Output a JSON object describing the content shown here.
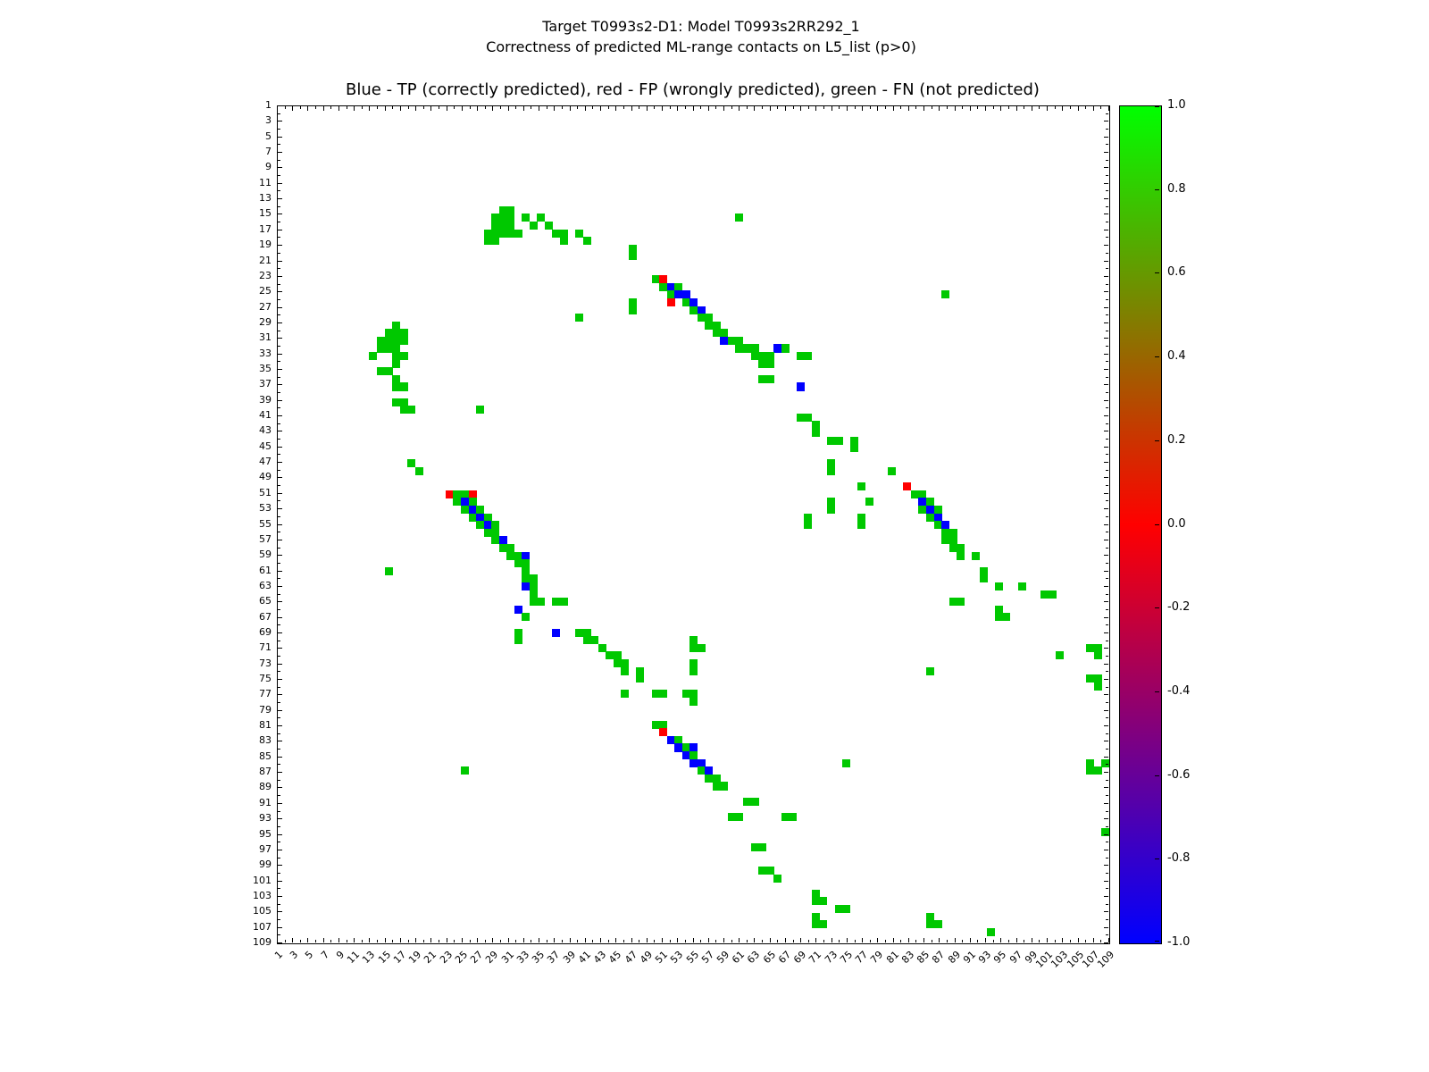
{
  "figure": {
    "title_line1": "Target T0993s2-D1: Model T0993s2RR292_1",
    "title_line2": "Correctness of predicted ML-range contacts on L5_list (p>0)"
  },
  "chart_data": {
    "type": "heatmap",
    "title": "Blue - TP (correctly predicted), red - FP (wrongly predicted), green - FN (not predicted)",
    "grid": {
      "rows": 109,
      "cols": 109
    },
    "axis_range": [
      1,
      109
    ],
    "tick_labels": [
      1,
      3,
      5,
      7,
      9,
      11,
      13,
      15,
      17,
      19,
      21,
      23,
      25,
      27,
      29,
      31,
      33,
      35,
      37,
      39,
      41,
      43,
      45,
      47,
      49,
      51,
      53,
      55,
      57,
      59,
      61,
      63,
      65,
      67,
      69,
      71,
      73,
      75,
      77,
      79,
      81,
      83,
      85,
      87,
      89,
      91,
      93,
      95,
      97,
      99,
      101,
      103,
      105,
      107,
      109
    ],
    "classes": {
      "TP": {
        "color": "#0000ff",
        "meaning": "correctly predicted"
      },
      "FP": {
        "color": "#ff0000",
        "meaning": "wrongly predicted"
      },
      "FN": {
        "color": "#00c800",
        "meaning": "not predicted"
      }
    },
    "colorbar": {
      "min": -1.0,
      "max": 1.0,
      "tick_labels": [
        "1.0",
        "0.8",
        "0.6",
        "0.4",
        "0.2",
        "0.0",
        "-0.2",
        "-0.4",
        "-0.6",
        "-0.8",
        "-1.0"
      ],
      "gradient_stops": [
        {
          "value": 1.0,
          "color": "#00ff00"
        },
        {
          "value": 0.0,
          "color": "#ff0000"
        },
        {
          "value": -1.0,
          "color": "#0000ff"
        }
      ]
    },
    "cells": [
      [
        14,
        30,
        "FN"
      ],
      [
        14,
        31,
        "FN"
      ],
      [
        15,
        29,
        "FN"
      ],
      [
        15,
        30,
        "FN"
      ],
      [
        15,
        31,
        "FN"
      ],
      [
        15,
        33,
        "FN"
      ],
      [
        15,
        35,
        "FN"
      ],
      [
        15,
        61,
        "FN"
      ],
      [
        16,
        29,
        "FN"
      ],
      [
        16,
        30,
        "FN"
      ],
      [
        16,
        31,
        "FN"
      ],
      [
        16,
        34,
        "FN"
      ],
      [
        16,
        36,
        "FN"
      ],
      [
        17,
        28,
        "FN"
      ],
      [
        17,
        29,
        "FN"
      ],
      [
        17,
        30,
        "FN"
      ],
      [
        17,
        31,
        "FN"
      ],
      [
        17,
        32,
        "FN"
      ],
      [
        17,
        37,
        "FN"
      ],
      [
        17,
        38,
        "FN"
      ],
      [
        17,
        40,
        "FN"
      ],
      [
        18,
        28,
        "FN"
      ],
      [
        18,
        29,
        "FN"
      ],
      [
        18,
        38,
        "FN"
      ],
      [
        18,
        41,
        "FN"
      ],
      [
        19,
        47,
        "FN"
      ],
      [
        20,
        47,
        "FN"
      ],
      [
        23,
        50,
        "FN"
      ],
      [
        23,
        51,
        "FP"
      ],
      [
        24,
        51,
        "FN"
      ],
      [
        24,
        52,
        "TP"
      ],
      [
        24,
        53,
        "FN"
      ],
      [
        25,
        52,
        "FN"
      ],
      [
        25,
        53,
        "TP"
      ],
      [
        25,
        54,
        "TP"
      ],
      [
        25,
        88,
        "FN"
      ],
      [
        26,
        47,
        "FN"
      ],
      [
        26,
        52,
        "FP"
      ],
      [
        26,
        54,
        "FN"
      ],
      [
        26,
        55,
        "TP"
      ],
      [
        27,
        47,
        "FN"
      ],
      [
        27,
        55,
        "FN"
      ],
      [
        27,
        56,
        "TP"
      ],
      [
        28,
        40,
        "FN"
      ],
      [
        28,
        56,
        "FN"
      ],
      [
        28,
        57,
        "FN"
      ],
      [
        29,
        16,
        "FN"
      ],
      [
        29,
        57,
        "FN"
      ],
      [
        29,
        58,
        "FN"
      ],
      [
        30,
        15,
        "FN"
      ],
      [
        30,
        16,
        "FN"
      ],
      [
        30,
        17,
        "FN"
      ],
      [
        30,
        58,
        "FN"
      ],
      [
        30,
        59,
        "FN"
      ],
      [
        31,
        14,
        "FN"
      ],
      [
        31,
        15,
        "FN"
      ],
      [
        31,
        16,
        "FN"
      ],
      [
        31,
        17,
        "FN"
      ],
      [
        31,
        59,
        "TP"
      ],
      [
        31,
        60,
        "FN"
      ],
      [
        31,
        61,
        "FN"
      ],
      [
        32,
        14,
        "FN"
      ],
      [
        32,
        15,
        "FN"
      ],
      [
        32,
        16,
        "FN"
      ],
      [
        32,
        61,
        "FN"
      ],
      [
        32,
        62,
        "FN"
      ],
      [
        32,
        63,
        "FN"
      ],
      [
        32,
        66,
        "TP"
      ],
      [
        32,
        67,
        "FN"
      ],
      [
        33,
        13,
        "FN"
      ],
      [
        33,
        16,
        "FN"
      ],
      [
        33,
        17,
        "FN"
      ],
      [
        33,
        63,
        "FN"
      ],
      [
        33,
        64,
        "FN"
      ],
      [
        33,
        65,
        "FN"
      ],
      [
        33,
        69,
        "FN"
      ],
      [
        33,
        70,
        "FN"
      ],
      [
        34,
        16,
        "FN"
      ],
      [
        34,
        64,
        "FN"
      ],
      [
        34,
        65,
        "FN"
      ],
      [
        35,
        14,
        "FN"
      ],
      [
        35,
        15,
        "FN"
      ],
      [
        36,
        16,
        "FN"
      ],
      [
        36,
        64,
        "FN"
      ],
      [
        36,
        65,
        "FN"
      ],
      [
        37,
        16,
        "FN"
      ],
      [
        37,
        17,
        "FN"
      ],
      [
        37,
        69,
        "TP"
      ],
      [
        39,
        16,
        "FN"
      ],
      [
        39,
        17,
        "FN"
      ],
      [
        40,
        17,
        "FN"
      ],
      [
        40,
        18,
        "FN"
      ],
      [
        40,
        27,
        "FN"
      ],
      [
        41,
        69,
        "FN"
      ],
      [
        41,
        70,
        "FN"
      ],
      [
        42,
        71,
        "FN"
      ],
      [
        43,
        71,
        "FN"
      ],
      [
        44,
        73,
        "FN"
      ],
      [
        44,
        74,
        "FN"
      ],
      [
        44,
        76,
        "FN"
      ],
      [
        45,
        76,
        "FN"
      ],
      [
        47,
        18,
        "FN"
      ],
      [
        47,
        73,
        "FN"
      ],
      [
        48,
        19,
        "FN"
      ],
      [
        48,
        73,
        "FN"
      ],
      [
        48,
        81,
        "FN"
      ],
      [
        50,
        77,
        "FN"
      ],
      [
        50,
        83,
        "FP"
      ],
      [
        51,
        23,
        "FP"
      ],
      [
        51,
        24,
        "FN"
      ],
      [
        51,
        25,
        "FN"
      ],
      [
        51,
        26,
        "FP"
      ],
      [
        51,
        84,
        "FN"
      ],
      [
        51,
        85,
        "FN"
      ],
      [
        52,
        24,
        "FN"
      ],
      [
        52,
        25,
        "TP"
      ],
      [
        52,
        26,
        "FN"
      ],
      [
        52,
        73,
        "FN"
      ],
      [
        52,
        78,
        "FN"
      ],
      [
        52,
        85,
        "TP"
      ],
      [
        52,
        86,
        "FN"
      ],
      [
        53,
        25,
        "FN"
      ],
      [
        53,
        26,
        "TP"
      ],
      [
        53,
        27,
        "FN"
      ],
      [
        53,
        73,
        "FN"
      ],
      [
        53,
        85,
        "FN"
      ],
      [
        53,
        86,
        "TP"
      ],
      [
        53,
        87,
        "FN"
      ],
      [
        54,
        26,
        "FN"
      ],
      [
        54,
        27,
        "TP"
      ],
      [
        54,
        28,
        "FN"
      ],
      [
        54,
        70,
        "FN"
      ],
      [
        54,
        77,
        "FN"
      ],
      [
        54,
        86,
        "FN"
      ],
      [
        54,
        87,
        "TP"
      ],
      [
        55,
        27,
        "FN"
      ],
      [
        55,
        28,
        "TP"
      ],
      [
        55,
        29,
        "FN"
      ],
      [
        55,
        70,
        "FN"
      ],
      [
        55,
        77,
        "FN"
      ],
      [
        55,
        87,
        "FN"
      ],
      [
        55,
        88,
        "TP"
      ],
      [
        56,
        28,
        "FN"
      ],
      [
        56,
        29,
        "FN"
      ],
      [
        56,
        88,
        "FN"
      ],
      [
        56,
        89,
        "FN"
      ],
      [
        57,
        29,
        "FN"
      ],
      [
        57,
        30,
        "TP"
      ],
      [
        57,
        88,
        "FN"
      ],
      [
        57,
        89,
        "FN"
      ],
      [
        58,
        30,
        "FN"
      ],
      [
        58,
        31,
        "FN"
      ],
      [
        58,
        89,
        "FN"
      ],
      [
        58,
        90,
        "FN"
      ],
      [
        59,
        31,
        "FN"
      ],
      [
        59,
        32,
        "FN"
      ],
      [
        59,
        33,
        "TP"
      ],
      [
        59,
        90,
        "FN"
      ],
      [
        59,
        92,
        "FN"
      ],
      [
        60,
        32,
        "FN"
      ],
      [
        60,
        33,
        "FN"
      ],
      [
        61,
        15,
        "FN"
      ],
      [
        61,
        33,
        "FN"
      ],
      [
        61,
        93,
        "FN"
      ],
      [
        62,
        33,
        "FN"
      ],
      [
        62,
        34,
        "FN"
      ],
      [
        62,
        93,
        "FN"
      ],
      [
        63,
        33,
        "TP"
      ],
      [
        63,
        34,
        "FN"
      ],
      [
        63,
        95,
        "FN"
      ],
      [
        63,
        98,
        "FN"
      ],
      [
        64,
        34,
        "FN"
      ],
      [
        64,
        101,
        "FN"
      ],
      [
        64,
        102,
        "FN"
      ],
      [
        65,
        34,
        "FN"
      ],
      [
        65,
        35,
        "FN"
      ],
      [
        65,
        37,
        "FN"
      ],
      [
        65,
        38,
        "FN"
      ],
      [
        65,
        89,
        "FN"
      ],
      [
        65,
        90,
        "FN"
      ],
      [
        66,
        32,
        "TP"
      ],
      [
        66,
        95,
        "FN"
      ],
      [
        67,
        33,
        "FN"
      ],
      [
        67,
        95,
        "FN"
      ],
      [
        67,
        96,
        "FN"
      ],
      [
        69,
        32,
        "FN"
      ],
      [
        69,
        37,
        "TP"
      ],
      [
        69,
        40,
        "FN"
      ],
      [
        69,
        41,
        "FN"
      ],
      [
        70,
        32,
        "FN"
      ],
      [
        70,
        41,
        "FN"
      ],
      [
        70,
        42,
        "FN"
      ],
      [
        70,
        55,
        "FN"
      ],
      [
        71,
        43,
        "FN"
      ],
      [
        71,
        55,
        "FN"
      ],
      [
        71,
        56,
        "FN"
      ],
      [
        71,
        107,
        "FN"
      ],
      [
        71,
        108,
        "FN"
      ],
      [
        72,
        44,
        "FN"
      ],
      [
        72,
        45,
        "FN"
      ],
      [
        72,
        103,
        "FN"
      ],
      [
        72,
        108,
        "FN"
      ],
      [
        73,
        45,
        "FN"
      ],
      [
        73,
        46,
        "FN"
      ],
      [
        73,
        55,
        "FN"
      ],
      [
        74,
        46,
        "FN"
      ],
      [
        74,
        48,
        "FN"
      ],
      [
        74,
        55,
        "FN"
      ],
      [
        74,
        86,
        "FN"
      ],
      [
        75,
        48,
        "FN"
      ],
      [
        75,
        107,
        "FN"
      ],
      [
        75,
        108,
        "FN"
      ],
      [
        76,
        108,
        "FN"
      ],
      [
        77,
        46,
        "FN"
      ],
      [
        77,
        50,
        "FN"
      ],
      [
        77,
        51,
        "FN"
      ],
      [
        77,
        54,
        "FN"
      ],
      [
        77,
        55,
        "FN"
      ],
      [
        78,
        55,
        "FN"
      ],
      [
        81,
        50,
        "FN"
      ],
      [
        81,
        51,
        "FN"
      ],
      [
        82,
        51,
        "FP"
      ],
      [
        83,
        52,
        "TP"
      ],
      [
        83,
        53,
        "FN"
      ],
      [
        84,
        53,
        "TP"
      ],
      [
        84,
        54,
        "FN"
      ],
      [
        84,
        55,
        "TP"
      ],
      [
        85,
        54,
        "TP"
      ],
      [
        85,
        55,
        "FN"
      ],
      [
        86,
        55,
        "TP"
      ],
      [
        86,
        56,
        "TP"
      ],
      [
        86,
        75,
        "FN"
      ],
      [
        86,
        107,
        "FN"
      ],
      [
        86,
        109,
        "FN"
      ],
      [
        87,
        25,
        "FN"
      ],
      [
        87,
        56,
        "FN"
      ],
      [
        87,
        57,
        "TP"
      ],
      [
        87,
        107,
        "FN"
      ],
      [
        87,
        108,
        "FN"
      ],
      [
        88,
        57,
        "FN"
      ],
      [
        88,
        58,
        "FN"
      ],
      [
        89,
        58,
        "FN"
      ],
      [
        89,
        59,
        "FN"
      ],
      [
        91,
        62,
        "FN"
      ],
      [
        91,
        63,
        "FN"
      ],
      [
        93,
        60,
        "FN"
      ],
      [
        93,
        61,
        "FN"
      ],
      [
        93,
        67,
        "FN"
      ],
      [
        93,
        68,
        "FN"
      ],
      [
        95,
        109,
        "FN"
      ],
      [
        97,
        63,
        "FN"
      ],
      [
        97,
        64,
        "FN"
      ],
      [
        100,
        64,
        "FN"
      ],
      [
        100,
        65,
        "FN"
      ],
      [
        101,
        66,
        "FN"
      ],
      [
        103,
        71,
        "FN"
      ],
      [
        104,
        71,
        "FN"
      ],
      [
        104,
        72,
        "FN"
      ],
      [
        105,
        74,
        "FN"
      ],
      [
        105,
        75,
        "FN"
      ],
      [
        106,
        71,
        "FN"
      ],
      [
        106,
        86,
        "FN"
      ],
      [
        107,
        71,
        "FN"
      ],
      [
        107,
        72,
        "FN"
      ],
      [
        107,
        86,
        "FN"
      ],
      [
        107,
        87,
        "FN"
      ],
      [
        108,
        94,
        "FN"
      ]
    ]
  }
}
